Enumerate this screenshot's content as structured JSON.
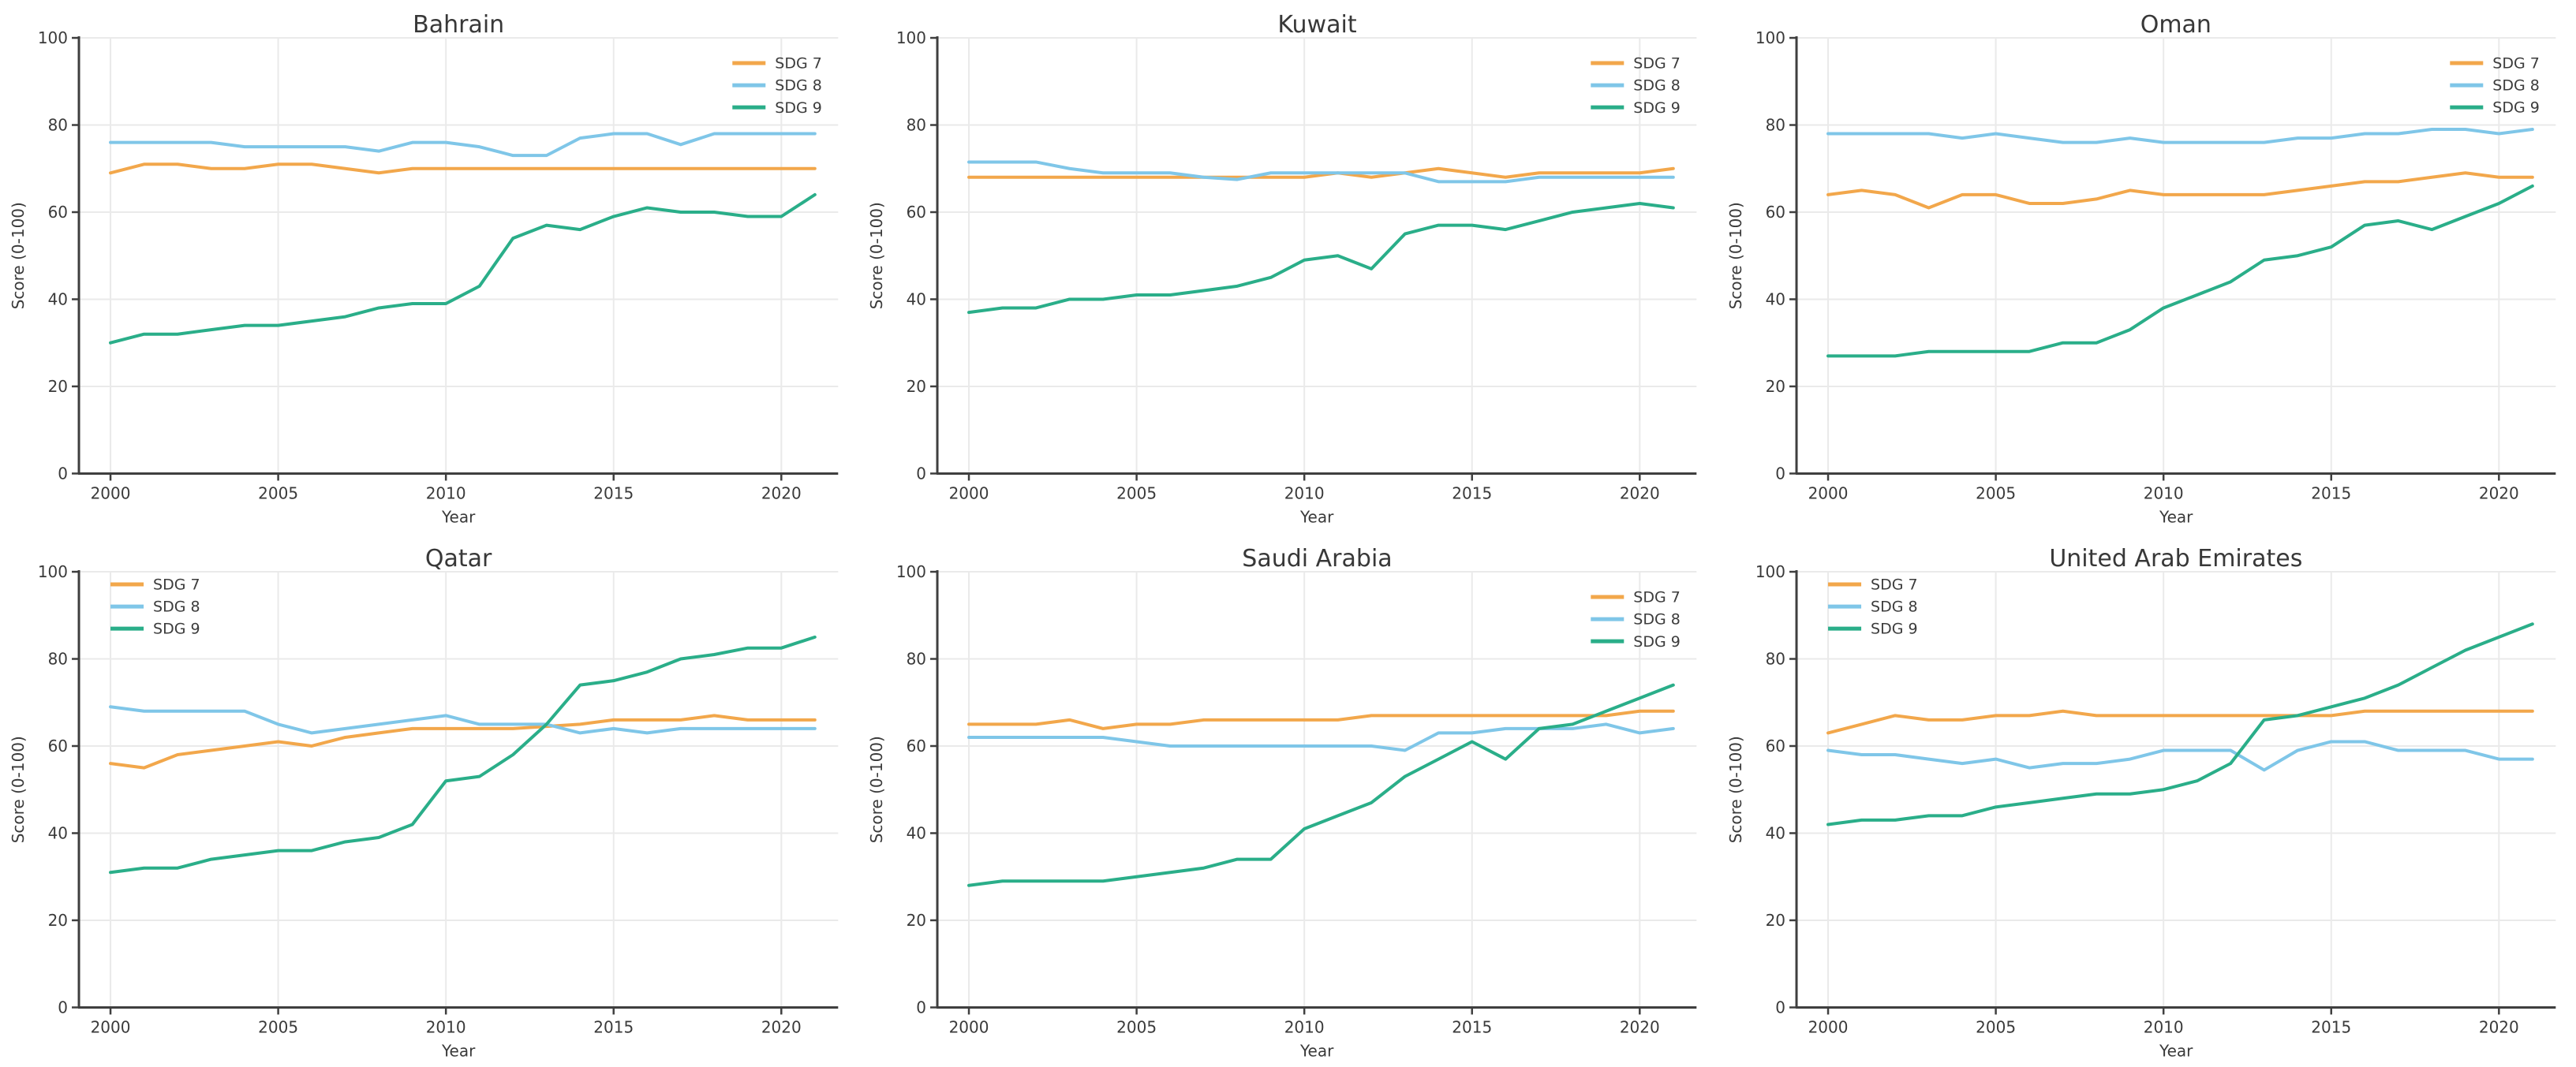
{
  "figure": {
    "xlabel": "Year",
    "ylabel": "Score (0-100)",
    "series_labels": [
      "SDG 7",
      "SDG 8",
      "SDG 9"
    ],
    "series_colors": [
      "#F2A74B",
      "#7FC6E8",
      "#2AAE89"
    ],
    "text_color": "#3a3a3a",
    "spine_color": "#3f3f3f",
    "grid_color": "#eaeaea",
    "x_ticks": [
      2000,
      2005,
      2010,
      2015,
      2020
    ],
    "y_ticks": [
      0,
      20,
      40,
      60,
      80,
      100
    ],
    "xlim": [
      2000,
      2021
    ],
    "ylim": [
      0,
      100
    ],
    "grid": true,
    "chart_type": "line"
  },
  "chart_data": [
    {
      "type": "line",
      "title": "Bahrain",
      "xlabel": "Year",
      "ylabel": "Score (0-100)",
      "ylim": [
        0,
        100
      ],
      "legend_position": "top-right",
      "x": [
        2000,
        2001,
        2002,
        2003,
        2004,
        2005,
        2006,
        2007,
        2008,
        2009,
        2010,
        2011,
        2012,
        2013,
        2014,
        2015,
        2016,
        2017,
        2018,
        2019,
        2020,
        2021
      ],
      "series": [
        {
          "name": "SDG 7",
          "values": [
            69,
            71,
            71,
            70,
            70,
            71,
            71,
            70,
            69,
            70,
            70,
            70,
            70,
            70,
            70,
            70,
            70,
            70,
            70,
            70,
            70,
            70
          ]
        },
        {
          "name": "SDG 8",
          "values": [
            76,
            76,
            76,
            76,
            75,
            75,
            75,
            75,
            74,
            76,
            76,
            75,
            73,
            73,
            77,
            78,
            78,
            75.5,
            78,
            78,
            78,
            78
          ]
        },
        {
          "name": "SDG 9",
          "values": [
            30,
            32,
            32,
            33,
            34,
            34,
            35,
            36,
            38,
            39,
            39,
            43,
            54,
            57,
            56,
            59,
            61,
            60,
            60,
            59,
            59,
            64
          ]
        }
      ]
    },
    {
      "type": "line",
      "title": "Kuwait",
      "xlabel": "Year",
      "ylabel": "Score (0-100)",
      "ylim": [
        0,
        100
      ],
      "legend_position": "top-right",
      "x": [
        2000,
        2001,
        2002,
        2003,
        2004,
        2005,
        2006,
        2007,
        2008,
        2009,
        2010,
        2011,
        2012,
        2013,
        2014,
        2015,
        2016,
        2017,
        2018,
        2019,
        2020,
        2021
      ],
      "series": [
        {
          "name": "SDG 7",
          "values": [
            68,
            68,
            68,
            68,
            68,
            68,
            68,
            68,
            68,
            68,
            68,
            69,
            68,
            69,
            70,
            69,
            68,
            69,
            69,
            69,
            69,
            70
          ]
        },
        {
          "name": "SDG 8",
          "values": [
            71.5,
            71.5,
            71.5,
            70,
            69,
            69,
            69,
            68,
            67.5,
            69,
            69,
            69,
            69,
            69,
            67,
            67,
            67,
            68,
            68,
            68,
            68,
            68
          ]
        },
        {
          "name": "SDG 9",
          "values": [
            37,
            38,
            38,
            40,
            40,
            41,
            41,
            42,
            43,
            45,
            49,
            50,
            47,
            55,
            57,
            57,
            56,
            58,
            60,
            61,
            62,
            61
          ]
        }
      ]
    },
    {
      "type": "line",
      "title": "Oman",
      "xlabel": "Year",
      "ylabel": "Score (0-100)",
      "ylim": [
        0,
        100
      ],
      "legend_position": "top-right",
      "x": [
        2000,
        2001,
        2002,
        2003,
        2004,
        2005,
        2006,
        2007,
        2008,
        2009,
        2010,
        2011,
        2012,
        2013,
        2014,
        2015,
        2016,
        2017,
        2018,
        2019,
        2020,
        2021
      ],
      "series": [
        {
          "name": "SDG 7",
          "values": [
            64,
            65,
            64,
            61,
            64,
            64,
            62,
            62,
            63,
            65,
            64,
            64,
            64,
            64,
            65,
            66,
            67,
            67,
            68,
            69,
            68,
            68
          ]
        },
        {
          "name": "SDG 8",
          "values": [
            78,
            78,
            78,
            78,
            77,
            78,
            77,
            76,
            76,
            77,
            76,
            76,
            76,
            76,
            77,
            77,
            78,
            78,
            79,
            79,
            78,
            79
          ]
        },
        {
          "name": "SDG 9",
          "values": [
            27,
            27,
            27,
            28,
            28,
            28,
            28,
            30,
            30,
            33,
            38,
            41,
            44,
            49,
            50,
            52,
            57,
            58,
            56,
            59,
            62,
            66
          ]
        }
      ]
    },
    {
      "type": "line",
      "title": "Qatar",
      "xlabel": "Year",
      "ylabel": "Score (0-100)",
      "ylim": [
        0,
        100
      ],
      "legend_position": "top-left",
      "x": [
        2000,
        2001,
        2002,
        2003,
        2004,
        2005,
        2006,
        2007,
        2008,
        2009,
        2010,
        2011,
        2012,
        2013,
        2014,
        2015,
        2016,
        2017,
        2018,
        2019,
        2020,
        2021
      ],
      "series": [
        {
          "name": "SDG 7",
          "values": [
            56,
            55,
            58,
            59,
            60,
            61,
            60,
            62,
            63,
            64,
            64,
            64,
            64,
            64.5,
            65,
            66,
            66,
            66,
            67,
            66,
            66,
            66
          ]
        },
        {
          "name": "SDG 8",
          "values": [
            69,
            68,
            68,
            68,
            68,
            65,
            63,
            64,
            65,
            66,
            67,
            65,
            65,
            65,
            63,
            64,
            63,
            64,
            64,
            64,
            64,
            64
          ]
        },
        {
          "name": "SDG 9",
          "values": [
            31,
            32,
            32,
            34,
            35,
            36,
            36,
            38,
            39,
            42,
            52,
            53,
            58,
            65,
            74,
            75,
            77,
            80,
            81,
            82.5,
            82.5,
            85
          ]
        }
      ]
    },
    {
      "type": "line",
      "title": "Saudi Arabia",
      "xlabel": "Year",
      "ylabel": "Score (0-100)",
      "ylim": [
        0,
        100
      ],
      "legend_position": "top-right",
      "x": [
        2000,
        2001,
        2002,
        2003,
        2004,
        2005,
        2006,
        2007,
        2008,
        2009,
        2010,
        2011,
        2012,
        2013,
        2014,
        2015,
        2016,
        2017,
        2018,
        2019,
        2020,
        2021
      ],
      "series": [
        {
          "name": "SDG 7",
          "values": [
            65,
            65,
            65,
            66,
            64,
            65,
            65,
            66,
            66,
            66,
            66,
            66,
            67,
            67,
            67,
            67,
            67,
            67,
            67,
            67,
            68,
            68
          ]
        },
        {
          "name": "SDG 8",
          "values": [
            62,
            62,
            62,
            62,
            62,
            61,
            60,
            60,
            60,
            60,
            60,
            60,
            60,
            59,
            63,
            63,
            64,
            64,
            64,
            65,
            63,
            64
          ]
        },
        {
          "name": "SDG 9",
          "values": [
            28,
            29,
            29,
            29,
            29,
            30,
            31,
            32,
            34,
            34,
            41,
            44,
            47,
            53,
            57,
            61,
            57,
            64,
            65,
            68,
            71,
            74
          ]
        }
      ]
    },
    {
      "type": "line",
      "title": "United Arab Emirates",
      "xlabel": "Year",
      "ylabel": "Score (0-100)",
      "ylim": [
        0,
        100
      ],
      "legend_position": "top-left",
      "x": [
        2000,
        2001,
        2002,
        2003,
        2004,
        2005,
        2006,
        2007,
        2008,
        2009,
        2010,
        2011,
        2012,
        2013,
        2014,
        2015,
        2016,
        2017,
        2018,
        2019,
        2020,
        2021
      ],
      "series": [
        {
          "name": "SDG 7",
          "values": [
            63,
            65,
            67,
            66,
            66,
            67,
            67,
            68,
            67,
            67,
            67,
            67,
            67,
            67,
            67,
            67,
            68,
            68,
            68,
            68,
            68,
            68
          ]
        },
        {
          "name": "SDG 8",
          "values": [
            59,
            58,
            58,
            57,
            56,
            57,
            55,
            56,
            56,
            57,
            59,
            59,
            59,
            54.5,
            59,
            61,
            61,
            59,
            59,
            59,
            57,
            57
          ]
        },
        {
          "name": "SDG 9",
          "values": [
            42,
            43,
            43,
            44,
            44,
            46,
            47,
            48,
            49,
            49,
            50,
            52,
            56,
            66,
            67,
            69,
            71,
            74,
            78,
            82,
            85,
            88
          ]
        }
      ]
    }
  ]
}
